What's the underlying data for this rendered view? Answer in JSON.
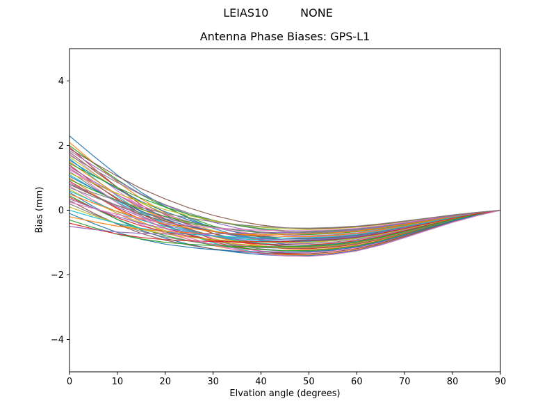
{
  "figure": {
    "suptitle": "LEIAS10         NONE",
    "title": "Antenna Phase Biases: GPS-L1"
  },
  "chart_data": {
    "type": "line",
    "suptitle": "LEIAS10         NONE",
    "title": "Antenna Phase Biases: GPS-L1",
    "xlabel": "Elvation angle (degrees)",
    "ylabel": "Bias (mm)",
    "xlim": [
      0,
      90
    ],
    "ylim": [
      -5,
      5
    ],
    "x_ticks": [
      0,
      10,
      20,
      30,
      40,
      50,
      60,
      70,
      80,
      90
    ],
    "x_tick_labels": [
      "0",
      "10",
      "20",
      "30",
      "40",
      "50",
      "60",
      "70",
      "80",
      "90"
    ],
    "y_ticks": [
      -4,
      -2,
      0,
      2,
      4
    ],
    "y_tick_labels": [
      "−4",
      "−2",
      "0",
      "2",
      "4"
    ],
    "grid": false,
    "legend": null,
    "color_cycle": [
      "#1f77b4",
      "#ff7f0e",
      "#2ca02c",
      "#d62728",
      "#9467bd",
      "#8c564b",
      "#e377c2",
      "#7f7f7f",
      "#bcbd22",
      "#17becf"
    ],
    "x": [
      0,
      5,
      10,
      15,
      20,
      25,
      30,
      35,
      40,
      45,
      50,
      55,
      60,
      65,
      70,
      75,
      80,
      85,
      90
    ],
    "base_curve": [
      0,
      -0.5,
      -0.95,
      -1.3,
      -1.55,
      -1.72,
      -1.85,
      -1.93,
      -1.98,
      -2.0,
      -1.98,
      -1.9,
      -1.75,
      -1.5,
      -1.18,
      -0.85,
      -0.52,
      -0.24,
      0
    ],
    "spread_decay": [
      1,
      0.85,
      0.7,
      0.55,
      0.42,
      0.3,
      0.2,
      0.12,
      0.06,
      0.02,
      0,
      0,
      0,
      0,
      0,
      0,
      0,
      0,
      0
    ],
    "series_model": "y(x_k) = start * spread_decay[k] + depth * base_curve[k]",
    "series": [
      {
        "start": 2.3,
        "depth": 0.55
      },
      {
        "start": 2.1,
        "depth": 0.62
      },
      {
        "start": 2.0,
        "depth": 0.48
      },
      {
        "start": 1.95,
        "depth": 0.7
      },
      {
        "start": 1.85,
        "depth": 0.4
      },
      {
        "start": 1.8,
        "depth": 0.58
      },
      {
        "start": 1.75,
        "depth": 0.66
      },
      {
        "start": 1.7,
        "depth": 0.35
      },
      {
        "start": 1.65,
        "depth": 0.52
      },
      {
        "start": 1.6,
        "depth": 0.72
      },
      {
        "start": 1.55,
        "depth": 0.45
      },
      {
        "start": 1.5,
        "depth": 0.6
      },
      {
        "start": 1.45,
        "depth": 0.33
      },
      {
        "start": 1.4,
        "depth": 0.68
      },
      {
        "start": 1.35,
        "depth": 0.5
      },
      {
        "start": 1.3,
        "depth": 0.57
      },
      {
        "start": 1.25,
        "depth": 0.42
      },
      {
        "start": 1.2,
        "depth": 0.64
      },
      {
        "start": 1.15,
        "depth": 0.3
      },
      {
        "start": 1.1,
        "depth": 0.55
      },
      {
        "start": 1.05,
        "depth": 0.47
      },
      {
        "start": 1.0,
        "depth": 0.7
      },
      {
        "start": 0.95,
        "depth": 0.38
      },
      {
        "start": 0.9,
        "depth": 0.6
      },
      {
        "start": 0.85,
        "depth": 0.52
      },
      {
        "start": 0.8,
        "depth": 0.44
      },
      {
        "start": 0.75,
        "depth": 0.66
      },
      {
        "start": 0.7,
        "depth": 0.36
      },
      {
        "start": 0.65,
        "depth": 0.58
      },
      {
        "start": 0.6,
        "depth": 0.49
      },
      {
        "start": 0.55,
        "depth": 0.71
      },
      {
        "start": 0.5,
        "depth": 0.41
      },
      {
        "start": 0.45,
        "depth": 0.63
      },
      {
        "start": 0.4,
        "depth": 0.54
      },
      {
        "start": 0.35,
        "depth": 0.46
      },
      {
        "start": 0.3,
        "depth": 0.68
      },
      {
        "start": 0.25,
        "depth": 0.32
      },
      {
        "start": 0.2,
        "depth": 0.59
      },
      {
        "start": 0.1,
        "depth": 0.5
      },
      {
        "start": 0.0,
        "depth": 0.43
      },
      {
        "start": -0.1,
        "depth": 0.65
      },
      {
        "start": -0.2,
        "depth": 0.37
      },
      {
        "start": -0.3,
        "depth": 0.56
      },
      {
        "start": -0.4,
        "depth": 0.48
      },
      {
        "start": -0.5,
        "depth": 0.34
      },
      {
        "start": 1.9,
        "depth": 0.29
      },
      {
        "start": 1.3,
        "depth": 0.72
      },
      {
        "start": 0.8,
        "depth": 0.28
      }
    ]
  }
}
